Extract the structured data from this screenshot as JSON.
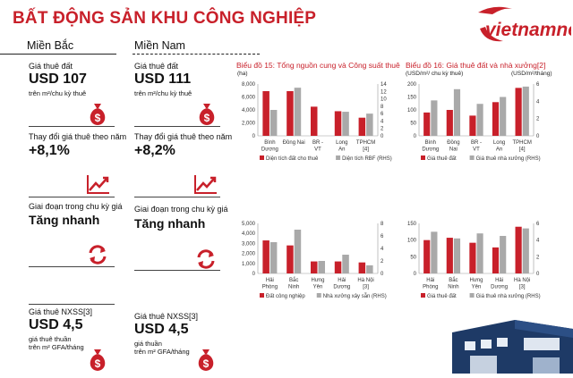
{
  "title": "BẤT ĐỘNG SẢN KHU CÔNG NGHIỆP",
  "logo_text": "vietnamnet",
  "regions": {
    "north": "Miền Bắc",
    "south": "Miền Nam"
  },
  "north": {
    "land_rent_label": "Giá thuê đất",
    "land_rent_value": "USD 107",
    "land_rent_unit": "trên m²/chu kỳ thuê",
    "change_label": "Thay đổi giá thuê theo năm",
    "change_value": "+8,1%",
    "cycle_label": "Giai đoạn trong chu kỳ giá",
    "cycle_value": "Tăng nhanh",
    "rbf_label": "Giá thuê NXSS[3]",
    "rbf_value": "USD 4,5",
    "rbf_unit1": "giá thuê thuần",
    "rbf_unit2": "trên m² GFA/tháng"
  },
  "south": {
    "land_rent_label": "Giá thuê đất",
    "land_rent_value": "USD 111",
    "land_rent_unit": "trên m²/chu kỳ thuê",
    "change_label": "Thay đổi giá thuê theo năm",
    "change_value": "+8,2%",
    "cycle_label": "Giai đoạn trong chu kỳ giá",
    "cycle_value": "Tăng nhanh",
    "rbf_label": "Giá thuê NXSS[3]",
    "rbf_value": "USD 4,5",
    "rbf_unit1": "giá thuần",
    "rbf_unit2": "trên m² GFA/tháng"
  },
  "icons": {
    "money": "money-bag-icon",
    "trend": "trend-up-icon",
    "cycle": "cycle-arrows-icon"
  },
  "colors": {
    "red": "#c8202a",
    "gray": "#a9a9a9",
    "navy": "#1e3a66"
  },
  "chart_data": [
    {
      "type": "bar",
      "title": "Biểu đồ 15: Tổng nguồn cung và Công suất thuê",
      "ylabel_left": "(ha)",
      "categories": [
        "Bình\nDương",
        "Đồng Nai",
        "BR -\nVT",
        "Long\nAn",
        "TPHCM\n[4]"
      ],
      "series": [
        {
          "name": "Diện tích đất cho thuê",
          "axis": "left",
          "color": "#c8202a",
          "values": [
            6900,
            6900,
            4500,
            3800,
            2800
          ]
        },
        {
          "name": "Diện tích RBF (RHS)",
          "axis": "right",
          "color": "#a9a9a9",
          "values": [
            7,
            13,
            0,
            6.5,
            6
          ]
        }
      ],
      "ylim_left": [
        0,
        8000
      ],
      "yticks_left": [
        "0",
        "2,000",
        "4,000",
        "6,000",
        "8,000"
      ],
      "ylim_right": [
        0,
        14
      ],
      "yticks_right": [
        "0",
        "2",
        "4",
        "6",
        "8",
        "10",
        "12",
        "14"
      ]
    },
    {
      "type": "bar",
      "title": "Biểu đồ 16: Giá thuê đất và nhà xưởng[2]",
      "ylabel_left": "(USD/m²/ chu kỳ thuê)",
      "ylabel_right": "(USD/m²/tháng)",
      "categories": [
        "Bình\nDương",
        "Đồng\nNai",
        "BR -\nVT",
        "Long\nAn",
        "TPHCM\n[4]"
      ],
      "series": [
        {
          "name": "Giá thuê đất",
          "axis": "left",
          "color": "#c8202a",
          "values": [
            90,
            100,
            78,
            130,
            185
          ]
        },
        {
          "name": "Giá thuê nhà xưởng (RHS)",
          "axis": "right",
          "color": "#a9a9a9",
          "values": [
            4.1,
            5.4,
            3.7,
            4.5,
            5.7
          ]
        }
      ],
      "ylim_left": [
        0,
        200
      ],
      "yticks_left": [
        "0",
        "50",
        "100",
        "150",
        "200"
      ],
      "ylim_right": [
        0,
        6
      ],
      "yticks_right": [
        "0",
        "2",
        "4",
        "6"
      ]
    },
    {
      "type": "bar",
      "categories": [
        "Hải\nPhòng",
        "Bắc\nNinh",
        "Hưng\nYên",
        "Hải\nDương",
        "Hà Nội\n[3]"
      ],
      "series": [
        {
          "name": "Đất công nghiệp",
          "axis": "left",
          "color": "#c8202a",
          "values": [
            3300,
            2800,
            1200,
            1200,
            1100
          ]
        },
        {
          "name": "Nhà xưởng xây sẵn (RHS)",
          "axis": "right",
          "color": "#a9a9a9",
          "values": [
            5,
            7,
            2,
            3,
            1.3
          ]
        }
      ],
      "ylim_left": [
        0,
        5000
      ],
      "yticks_left": [
        "0",
        "1,000",
        "2,000",
        "3,000",
        "4,000",
        "5,000"
      ],
      "ylim_right": [
        0,
        8
      ],
      "yticks_right": [
        "0",
        "2",
        "4",
        "6",
        "8"
      ]
    },
    {
      "type": "bar",
      "categories": [
        "Hải\nPhòng",
        "Bắc\nNinh",
        "Hưng\nYên",
        "Hải\nDương",
        "Hà Nội\n[3]"
      ],
      "series": [
        {
          "name": "Giá thuê đất",
          "axis": "left",
          "color": "#c8202a",
          "values": [
            100,
            107,
            92,
            78,
            140
          ]
        },
        {
          "name": "Giá thuê nhà xưởng (RHS)",
          "axis": "right",
          "color": "#a9a9a9",
          "values": [
            5,
            4.2,
            4.8,
            4.5,
            5.4
          ]
        }
      ],
      "ylim_left": [
        0,
        150
      ],
      "yticks_left": [
        "0",
        "50",
        "100",
        "150"
      ],
      "ylim_right": [
        0,
        6
      ],
      "yticks_right": [
        "0",
        "2",
        "4",
        "6"
      ]
    }
  ]
}
